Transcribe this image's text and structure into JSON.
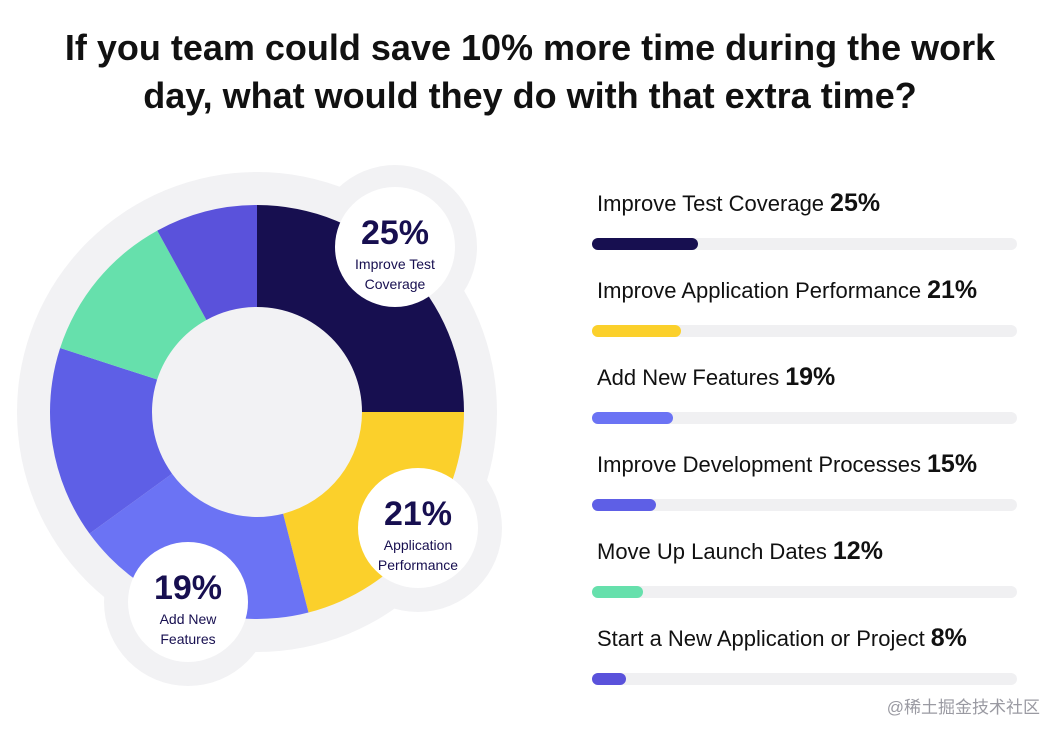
{
  "title": {
    "line1": "If you team could save 10% more time during the work",
    "line2": "day, what would they do with that extra time?"
  },
  "chart_data": {
    "type": "pie",
    "title": "If you team could save 10% more time during the work day, what would they do with that extra time?",
    "categories": [
      "Improve Test Coverage",
      "Improve Application Performance",
      "Add New Features",
      "Improve Development Processes",
      "Move Up Launch Dates",
      "Start a New Application or Project"
    ],
    "values": [
      25,
      21,
      19,
      15,
      12,
      8
    ],
    "colors": [
      "#170f50",
      "#fbd02b",
      "#6b73f4",
      "#5e5fe6",
      "#66e0ac",
      "#5a52db"
    ],
    "unit": "%",
    "callouts": [
      {
        "pct": "25%",
        "line1": "Improve Test",
        "line2": "Coverage"
      },
      {
        "pct": "21%",
        "line1": "Application",
        "line2": "Performance"
      },
      {
        "pct": "19%",
        "line1": "Add New",
        "line2": "Features"
      }
    ]
  },
  "bars": [
    {
      "label": "Improve Test Coverage",
      "pct": "25%",
      "value": 25,
      "color": "#170f50"
    },
    {
      "label": "Improve Application Performance",
      "pct": "21%",
      "value": 21,
      "color": "#fbd02b"
    },
    {
      "label": "Add New Features",
      "pct": "19%",
      "value": 19,
      "color": "#6b73f4"
    },
    {
      "label": "Improve Development Processes",
      "pct": "15%",
      "value": 15,
      "color": "#5e5fe6"
    },
    {
      "label": "Move Up Launch Dates",
      "pct": "12%",
      "value": 12,
      "color": "#66e0ac"
    },
    {
      "label": "Start a New Application or Project",
      "pct": "8%",
      "value": 8,
      "color": "#5a52db"
    }
  ],
  "watermark": "@稀土掘金技术社区"
}
